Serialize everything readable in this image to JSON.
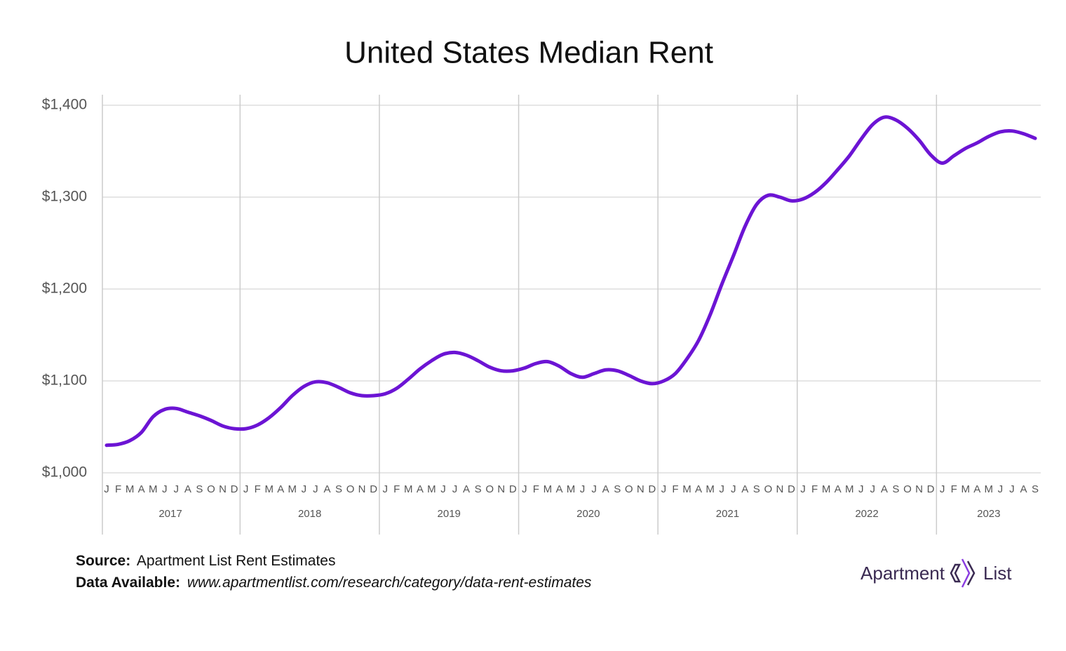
{
  "chart_data": {
    "type": "line",
    "title": "United States Median Rent",
    "categories": [
      "J",
      "F",
      "M",
      "A",
      "M",
      "J",
      "J",
      "A",
      "S",
      "O",
      "N",
      "D",
      "J",
      "F",
      "M",
      "A",
      "M",
      "J",
      "J",
      "A",
      "S",
      "O",
      "N",
      "D",
      "J",
      "F",
      "M",
      "A",
      "M",
      "J",
      "J",
      "A",
      "S",
      "O",
      "N",
      "D",
      "J",
      "F",
      "M",
      "A",
      "M",
      "J",
      "J",
      "A",
      "S",
      "O",
      "N",
      "D",
      "J",
      "F",
      "M",
      "A",
      "M",
      "J",
      "J",
      "A",
      "S",
      "O",
      "N",
      "D",
      "J",
      "F",
      "M",
      "A",
      "M",
      "J",
      "J",
      "A",
      "S",
      "O",
      "N",
      "D",
      "J",
      "F",
      "M",
      "A",
      "M",
      "J",
      "J",
      "A",
      "S"
    ],
    "years": [
      "2017",
      "2018",
      "2019",
      "2020",
      "2021",
      "2022",
      "2023"
    ],
    "series": [
      {
        "name": "Median Rent",
        "color": "#6c14d4",
        "values": [
          1030,
          1031,
          1035,
          1044,
          1061,
          1069,
          1070,
          1066,
          1062,
          1057,
          1051,
          1048,
          1048,
          1052,
          1060,
          1071,
          1084,
          1094,
          1099,
          1098,
          1093,
          1087,
          1084,
          1084,
          1086,
          1092,
          1102,
          1113,
          1122,
          1129,
          1131,
          1128,
          1122,
          1115,
          1111,
          1111,
          1114,
          1119,
          1121,
          1116,
          1108,
          1104,
          1108,
          1112,
          1111,
          1106,
          1100,
          1097,
          1100,
          1108,
          1124,
          1144,
          1172,
          1205,
          1236,
          1268,
          1292,
          1302,
          1300,
          1296,
          1298,
          1305,
          1316,
          1330,
          1345,
          1363,
          1379,
          1387,
          1384,
          1375,
          1362,
          1346,
          1337,
          1345,
          1353,
          1359,
          1366,
          1371,
          1372,
          1369,
          1364
        ]
      }
    ],
    "ylim": [
      1000,
      1400
    ],
    "yticks": [
      {
        "value": 1000,
        "label": "$1,000"
      },
      {
        "value": 1100,
        "label": "$1,100"
      },
      {
        "value": 1200,
        "label": "$1,200"
      },
      {
        "value": 1300,
        "label": "$1,300"
      },
      {
        "value": 1400,
        "label": "$1,400"
      }
    ],
    "grid": true
  },
  "footer": {
    "source_label": "Source:",
    "source": "Apartment List Rent Estimates",
    "data_label": "Data Available:",
    "data_url": "www.apartmentlist.com/research/category/data-rent-estimates"
  },
  "logo": {
    "left": "Apartment",
    "right": "List"
  }
}
